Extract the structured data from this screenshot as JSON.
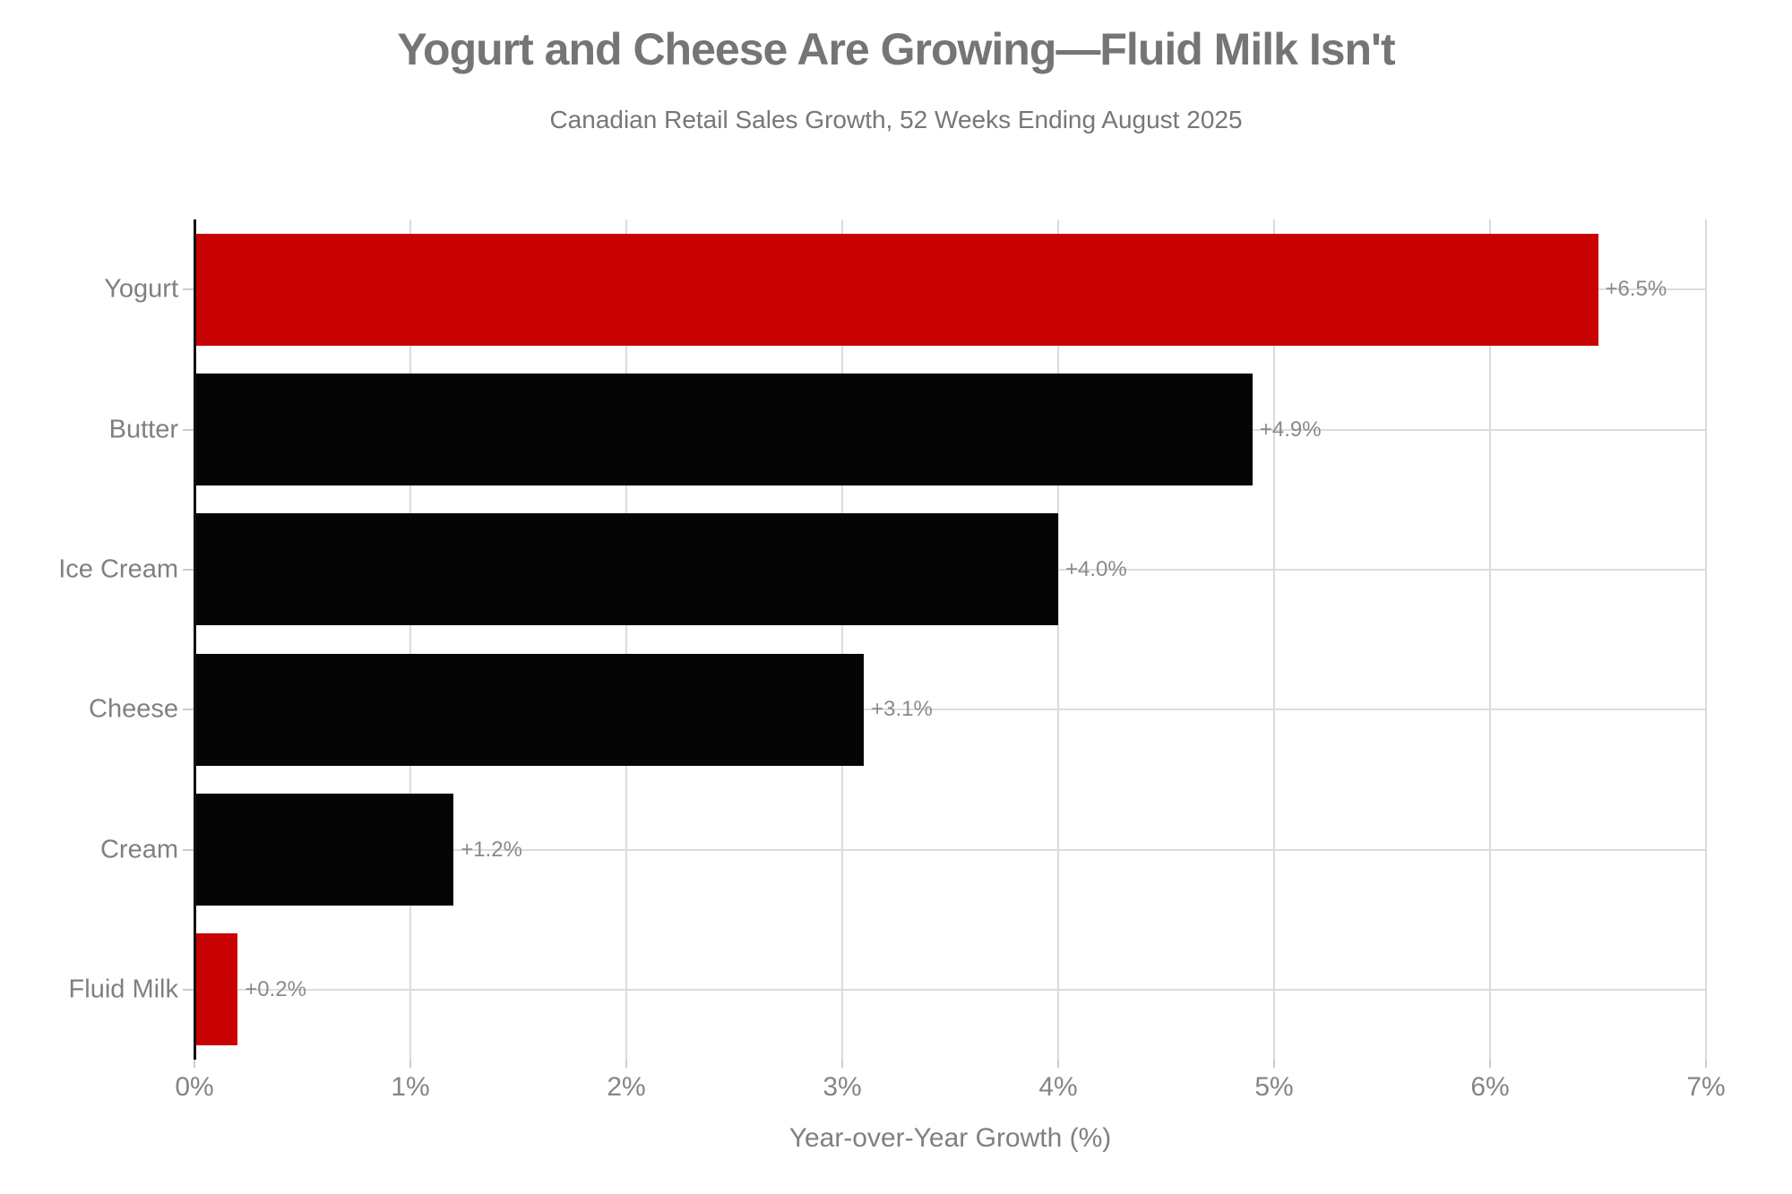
{
  "chart_data": {
    "type": "bar",
    "orientation": "horizontal",
    "title": "Yogurt and Cheese Are Growing—Fluid Milk Isn't",
    "subtitle": "Canadian Retail Sales Growth, 52 Weeks Ending August 2025",
    "xlabel": "Year-over-Year Growth (%)",
    "xlim": [
      0,
      7
    ],
    "x_ticks": [
      "0%",
      "1%",
      "2%",
      "3%",
      "4%",
      "5%",
      "6%",
      "7%"
    ],
    "grid": true,
    "legend": "none",
    "categories": [
      "Yogurt",
      "Butter",
      "Ice Cream",
      "Cheese",
      "Cream",
      "Fluid Milk"
    ],
    "values": [
      6.5,
      4.9,
      4.0,
      3.1,
      1.2,
      0.2
    ],
    "bar_labels": [
      "+6.5%",
      "+4.9%",
      "+4.0%",
      "+3.1%",
      "+1.2%",
      "+0.2%"
    ],
    "bar_colors": [
      "#C80202",
      "#050505",
      "#050505",
      "#050505",
      "#050505",
      "#C80202"
    ],
    "highlight_color": "#C80202",
    "base_color": "#050505"
  },
  "colors": {
    "background": "#FFFFFF",
    "title_text": "#757575",
    "subtitle_text": "#777777",
    "axis_text": "#858585",
    "value_text": "#8A8A8A",
    "gridline": "#DCDCDC",
    "y_spine": "#111111",
    "tick_mark": "#CCCCCC"
  }
}
